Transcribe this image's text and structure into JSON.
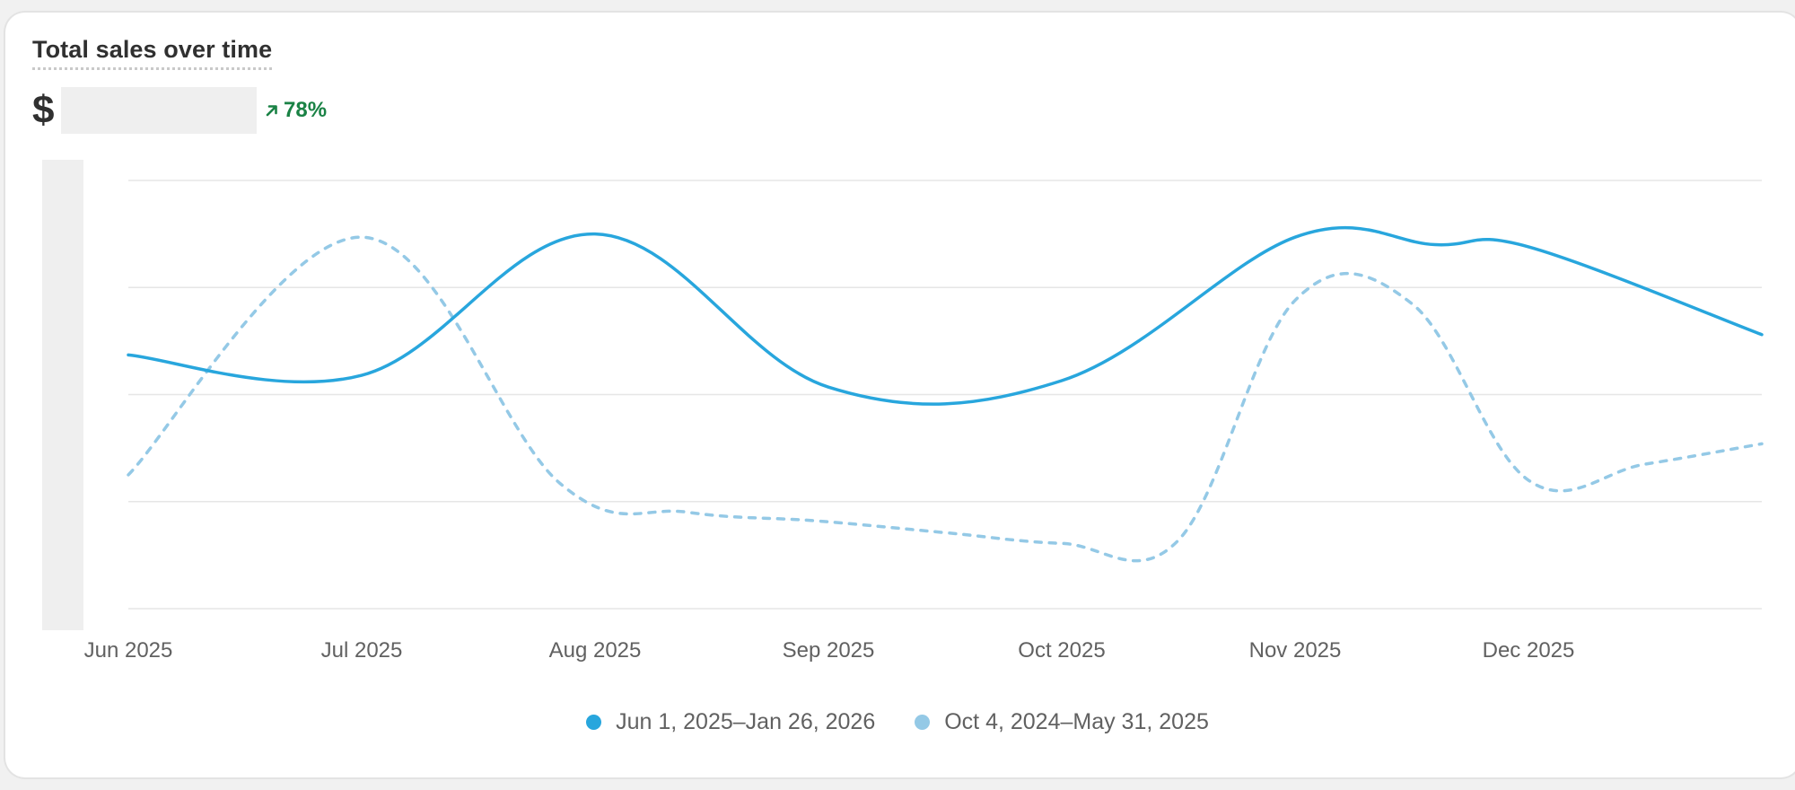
{
  "card": {
    "title": "Total sales over time",
    "currency_symbol": "$",
    "delta_text": "78%",
    "delta_icon": "arrow-up-right-icon",
    "delta_color": "#1a8245"
  },
  "chart_data": {
    "type": "line",
    "title": "Total sales over time",
    "xlabel": "",
    "ylabel": "",
    "x_tick_labels": [
      "Jun 2025",
      "Jul 2025",
      "Aug 2025",
      "Sep 2025",
      "Oct 2025",
      "Nov 2025",
      "Dec 2025"
    ],
    "ylim": [
      0,
      4
    ],
    "y_tick_labels_hidden": true,
    "grid": true,
    "legend_position": "bottom-center",
    "series": [
      {
        "name": "Jun 1, 2025–Jan 26, 2026",
        "color": "#28a6dd",
        "style": "solid",
        "x": [
          0,
          1,
          2,
          3,
          4,
          5,
          5.6,
          6,
          7
        ],
        "values": [
          2.37,
          2.18,
          3.5,
          2.07,
          2.13,
          3.47,
          3.4,
          3.38,
          2.56
        ]
      },
      {
        "name": "Oct 4, 2024–May 31, 2025",
        "color": "#94c9e6",
        "style": "dashed",
        "x": [
          0,
          1,
          1.85,
          2.4,
          2.95,
          3.5,
          4,
          4.5,
          5,
          5.5,
          6,
          6.5,
          7
        ],
        "values": [
          1.25,
          3.47,
          1.17,
          0.9,
          0.82,
          0.71,
          0.61,
          0.64,
          2.88,
          2.85,
          1.2,
          1.35,
          1.54
        ]
      }
    ]
  }
}
